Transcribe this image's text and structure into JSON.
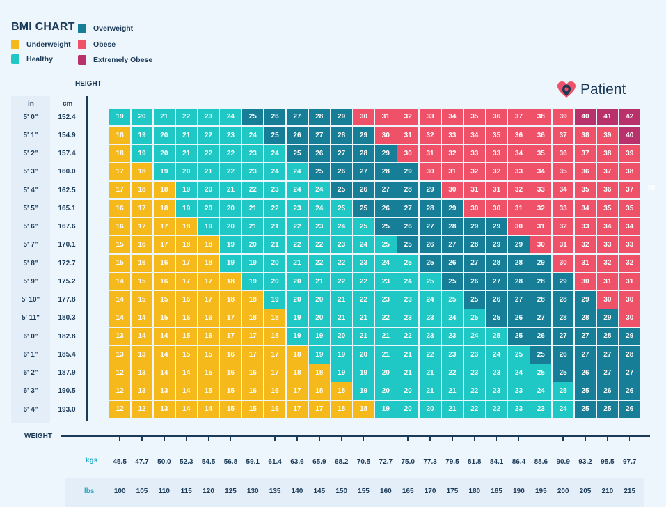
{
  "title": "BMI CHART",
  "legend": [
    {
      "label": "Underweight",
      "color": "#f6b91b"
    },
    {
      "label": "Healthy",
      "color": "#1fc8c4"
    },
    {
      "label": "Overweight",
      "color": "#177e98"
    },
    {
      "label": "Obese",
      "color": "#ef5169"
    },
    {
      "label": "Extremely Obese",
      "color": "#b8316a"
    }
  ],
  "brand": {
    "name": "Patient",
    "icon": "heart-pin-icon"
  },
  "stray_label": "38",
  "chart_data": {
    "type": "heatmap",
    "title": "BMI CHART",
    "ylabel": "HEIGHT",
    "xlabel": "WEIGHT",
    "height_units": [
      "in",
      "cm"
    ],
    "weight_units": [
      "kgs",
      "lbs"
    ],
    "heights_in": [
      "5' 0\"",
      "5' 1\"",
      "5' 2\"",
      "5' 3\"",
      "5' 4\"",
      "5' 5\"",
      "5' 6\"",
      "5' 7\"",
      "5' 8\"",
      "5' 9\"",
      "5' 10\"",
      "5' 11\"",
      "6' 0\"",
      "6' 1\"",
      "6' 2\"",
      "6' 3\"",
      "6' 4\""
    ],
    "heights_cm": [
      "152.4",
      "154.9",
      "157.4",
      "160.0",
      "162.5",
      "165.1",
      "167.6",
      "170.1",
      "172.7",
      "175.2",
      "177.8",
      "180.3",
      "182.8",
      "185.4",
      "187.9",
      "190.5",
      "193.0"
    ],
    "weights_kg": [
      "45.5",
      "47.7",
      "50.0",
      "52.3",
      "54.5",
      "56.8",
      "59.1",
      "61.4",
      "63.6",
      "65.9",
      "68.2",
      "70.5",
      "72.7",
      "75.0",
      "77.3",
      "79.5",
      "81.8",
      "84.1",
      "86.4",
      "88.6",
      "90.9",
      "93.2",
      "95.5",
      "97.7"
    ],
    "weights_lb": [
      "100",
      "105",
      "110",
      "115",
      "120",
      "125",
      "130",
      "135",
      "140",
      "145",
      "150",
      "155",
      "160",
      "165",
      "170",
      "175",
      "180",
      "185",
      "190",
      "195",
      "200",
      "205",
      "210",
      "215"
    ],
    "values": [
      [
        19,
        20,
        21,
        22,
        23,
        24,
        25,
        26,
        27,
        28,
        29,
        30,
        31,
        32,
        33,
        34,
        35,
        36,
        37,
        38,
        39,
        40,
        41,
        42
      ],
      [
        18,
        19,
        20,
        21,
        22,
        23,
        24,
        25,
        26,
        27,
        28,
        29,
        30,
        31,
        32,
        33,
        34,
        35,
        36,
        36,
        37,
        38,
        39,
        40
      ],
      [
        18,
        19,
        20,
        21,
        22,
        22,
        23,
        24,
        25,
        26,
        27,
        28,
        29,
        30,
        31,
        32,
        33,
        33,
        34,
        35,
        36,
        37,
        38,
        39
      ],
      [
        17,
        18,
        19,
        20,
        21,
        22,
        23,
        24,
        24,
        25,
        26,
        27,
        28,
        29,
        30,
        31,
        32,
        32,
        33,
        34,
        35,
        36,
        37,
        38
      ],
      [
        17,
        18,
        18,
        19,
        20,
        21,
        22,
        23,
        24,
        24,
        25,
        26,
        27,
        28,
        29,
        30,
        31,
        31,
        32,
        33,
        34,
        35,
        36,
        37
      ],
      [
        16,
        17,
        18,
        19,
        20,
        20,
        21,
        22,
        23,
        24,
        25,
        25,
        26,
        27,
        28,
        29,
        30,
        30,
        31,
        32,
        33,
        34,
        35,
        35
      ],
      [
        16,
        17,
        17,
        18,
        19,
        20,
        21,
        21,
        22,
        23,
        24,
        25,
        25,
        26,
        27,
        28,
        29,
        29,
        30,
        31,
        32,
        33,
        34,
        34
      ],
      [
        15,
        16,
        17,
        18,
        18,
        19,
        20,
        21,
        22,
        22,
        23,
        24,
        25,
        25,
        26,
        27,
        28,
        29,
        29,
        30,
        31,
        32,
        33,
        33
      ],
      [
        15,
        16,
        16,
        17,
        18,
        19,
        19,
        20,
        21,
        22,
        22,
        23,
        24,
        25,
        25,
        26,
        27,
        28,
        28,
        29,
        30,
        31,
        32,
        32
      ],
      [
        14,
        15,
        16,
        17,
        17,
        18,
        19,
        20,
        20,
        21,
        22,
        22,
        23,
        24,
        25,
        25,
        26,
        27,
        28,
        28,
        29,
        30,
        31,
        31
      ],
      [
        14,
        15,
        15,
        16,
        17,
        18,
        18,
        19,
        20,
        20,
        21,
        22,
        23,
        23,
        24,
        25,
        25,
        26,
        27,
        28,
        28,
        29,
        30,
        30
      ],
      [
        14,
        14,
        15,
        16,
        16,
        17,
        18,
        18,
        19,
        20,
        21,
        21,
        22,
        23,
        23,
        24,
        25,
        25,
        26,
        27,
        28,
        28,
        29,
        30
      ],
      [
        13,
        14,
        14,
        15,
        16,
        17,
        17,
        18,
        19,
        19,
        20,
        21,
        21,
        22,
        23,
        23,
        24,
        25,
        25,
        26,
        27,
        27,
        28,
        29
      ],
      [
        13,
        13,
        14,
        15,
        15,
        16,
        17,
        17,
        18,
        19,
        19,
        20,
        21,
        21,
        22,
        23,
        23,
        24,
        25,
        25,
        26,
        27,
        27,
        28
      ],
      [
        12,
        13,
        14,
        14,
        15,
        16,
        16,
        17,
        18,
        18,
        19,
        19,
        20,
        21,
        21,
        22,
        23,
        23,
        24,
        25,
        25,
        26,
        27,
        27
      ],
      [
        12,
        13,
        13,
        14,
        15,
        15,
        16,
        16,
        17,
        18,
        18,
        19,
        20,
        20,
        21,
        21,
        22,
        23,
        23,
        24,
        25,
        25,
        26,
        26
      ],
      [
        12,
        12,
        13,
        14,
        14,
        15,
        15,
        16,
        17,
        17,
        18,
        18,
        19,
        20,
        20,
        21,
        22,
        22,
        23,
        23,
        24,
        25,
        25,
        26
      ]
    ],
    "category_thresholds": {
      "underweight_below": 18.5,
      "healthy_below": 25,
      "overweight_below": 30,
      "obese_below": 40
    },
    "category_overrides": [
      {
        "row": 0,
        "col": 10,
        "category": "overweight"
      },
      {
        "row": 1,
        "col": 11,
        "category": "overweight"
      },
      {
        "row": 2,
        "col": 11,
        "category": "overweight"
      },
      {
        "row": 2,
        "col": 12,
        "category": "overweight"
      },
      {
        "row": 3,
        "col": 12,
        "category": "overweight"
      },
      {
        "row": 4,
        "col": 13,
        "category": "overweight"
      },
      {
        "row": 5,
        "col": 13,
        "category": "overweight"
      },
      {
        "row": 5,
        "col": 14,
        "category": "overweight"
      },
      {
        "row": 6,
        "col": 15,
        "category": "overweight"
      },
      {
        "row": 7,
        "col": 16,
        "category": "overweight"
      },
      {
        "row": 7,
        "col": 17,
        "category": "overweight"
      },
      {
        "row": 8,
        "col": 18,
        "category": "overweight"
      },
      {
        "row": 9,
        "col": 19,
        "category": "overweight"
      },
      {
        "row": 10,
        "col": 19,
        "category": "overweight"
      },
      {
        "row": 10,
        "col": 20,
        "category": "overweight"
      },
      {
        "row": 11,
        "col": 21,
        "category": "overweight"
      },
      {
        "row": 11,
        "col": 22,
        "category": "overweight"
      },
      {
        "row": 12,
        "col": 22,
        "category": "overweight"
      },
      {
        "row": 12,
        "col": 23,
        "category": "overweight"
      },
      {
        "row": 13,
        "col": 23,
        "category": "overweight"
      },
      {
        "row": 0,
        "col": 21,
        "category": "extreme"
      },
      {
        "row": 0,
        "col": 22,
        "category": "extreme"
      },
      {
        "row": 1,
        "col": 23,
        "category": "extreme"
      },
      {
        "row": 0,
        "col": 5,
        "category": "healthy"
      },
      {
        "row": 1,
        "col": 6,
        "category": "healthy"
      },
      {
        "row": 2,
        "col": 7,
        "category": "healthy"
      },
      {
        "row": 3,
        "col": 8,
        "category": "healthy"
      },
      {
        "row": 4,
        "col": 9,
        "category": "healthy"
      },
      {
        "row": 5,
        "col": 10,
        "category": "healthy"
      },
      {
        "row": 6,
        "col": 11,
        "category": "healthy"
      },
      {
        "row": 7,
        "col": 12,
        "category": "healthy"
      },
      {
        "row": 8,
        "col": 13,
        "category": "healthy"
      },
      {
        "row": 9,
        "col": 14,
        "category": "healthy"
      },
      {
        "row": 10,
        "col": 15,
        "category": "healthy"
      },
      {
        "row": 11,
        "col": 16,
        "category": "healthy"
      },
      {
        "row": 12,
        "col": 17,
        "category": "healthy"
      },
      {
        "row": 13,
        "col": 17,
        "category": "healthy"
      },
      {
        "row": 13,
        "col": 18,
        "category": "healthy"
      },
      {
        "row": 14,
        "col": 19,
        "category": "healthy"
      },
      {
        "row": 15,
        "col": 20,
        "category": "healthy"
      },
      {
        "row": 16,
        "col": 20,
        "category": "healthy"
      },
      {
        "row": 2,
        "col": 0,
        "category": "underweight"
      },
      {
        "row": 3,
        "col": 1,
        "category": "underweight"
      },
      {
        "row": 4,
        "col": 1,
        "category": "underweight"
      },
      {
        "row": 5,
        "col": 2,
        "category": "underweight"
      },
      {
        "row": 7,
        "col": 3,
        "category": "underweight"
      },
      {
        "row": 8,
        "col": 4,
        "category": "underweight"
      },
      {
        "row": 10,
        "col": 5,
        "category": "underweight"
      },
      {
        "row": 11,
        "col": 6,
        "category": "underweight"
      },
      {
        "row": 12,
        "col": 7,
        "category": "underweight"
      },
      {
        "row": 14,
        "col": 8,
        "category": "underweight"
      },
      {
        "row": 15,
        "col": 9,
        "category": "underweight"
      },
      {
        "row": 16,
        "col": 10,
        "category": "underweight"
      }
    ]
  }
}
